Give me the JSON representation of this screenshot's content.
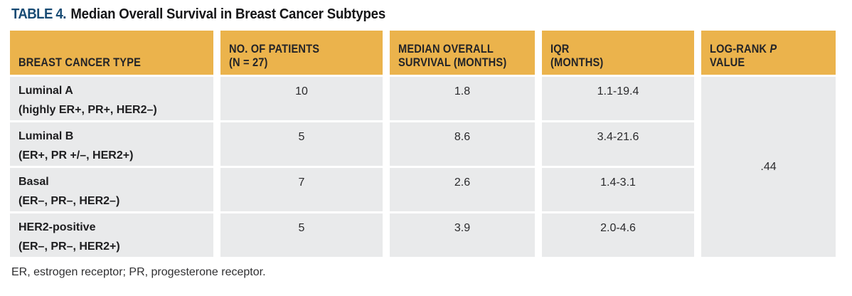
{
  "title": {
    "label": "TABLE 4.",
    "text": "Median Overall Survival in Breast Cancer Subtypes"
  },
  "colors": {
    "header_bg": "#EBB34C",
    "row_bg": "#E9EAEB",
    "title_label": "#164A73"
  },
  "table": {
    "headers": {
      "type": "BREAST CANCER TYPE",
      "patients": "NO. OF PATIENTS\n(N = 27)",
      "median": "MEDIAN OVERALL\nSURVIVAL (MONTHS)",
      "iqr": "IQR\n(MONTHS)",
      "log_rank": {
        "pre": "LOG-RANK ",
        "p": "P",
        "post": " VALUE"
      }
    },
    "rows": [
      {
        "name": "Luminal A",
        "subtype": "(highly ER+, PR+, HER2–)",
        "patients": "10",
        "median": "1.8",
        "iqr": "1.1-19.4"
      },
      {
        "name": "Luminal B",
        "subtype": "(ER+, PR +/–, HER2+)",
        "patients": "5",
        "median": "8.6",
        "iqr": "3.4-21.6"
      },
      {
        "name": "Basal",
        "subtype": "(ER–, PR–, HER2–)",
        "patients": "7",
        "median": "2.6",
        "iqr": "1.4-3.1"
      },
      {
        "name": "HER2-positive",
        "subtype": "(ER–, PR–, HER2+)",
        "patients": "5",
        "median": "3.9",
        "iqr": "2.0-4.6"
      }
    ],
    "p_value": ".44"
  },
  "footnote": "ER, estrogen receptor; PR, progesterone receptor."
}
